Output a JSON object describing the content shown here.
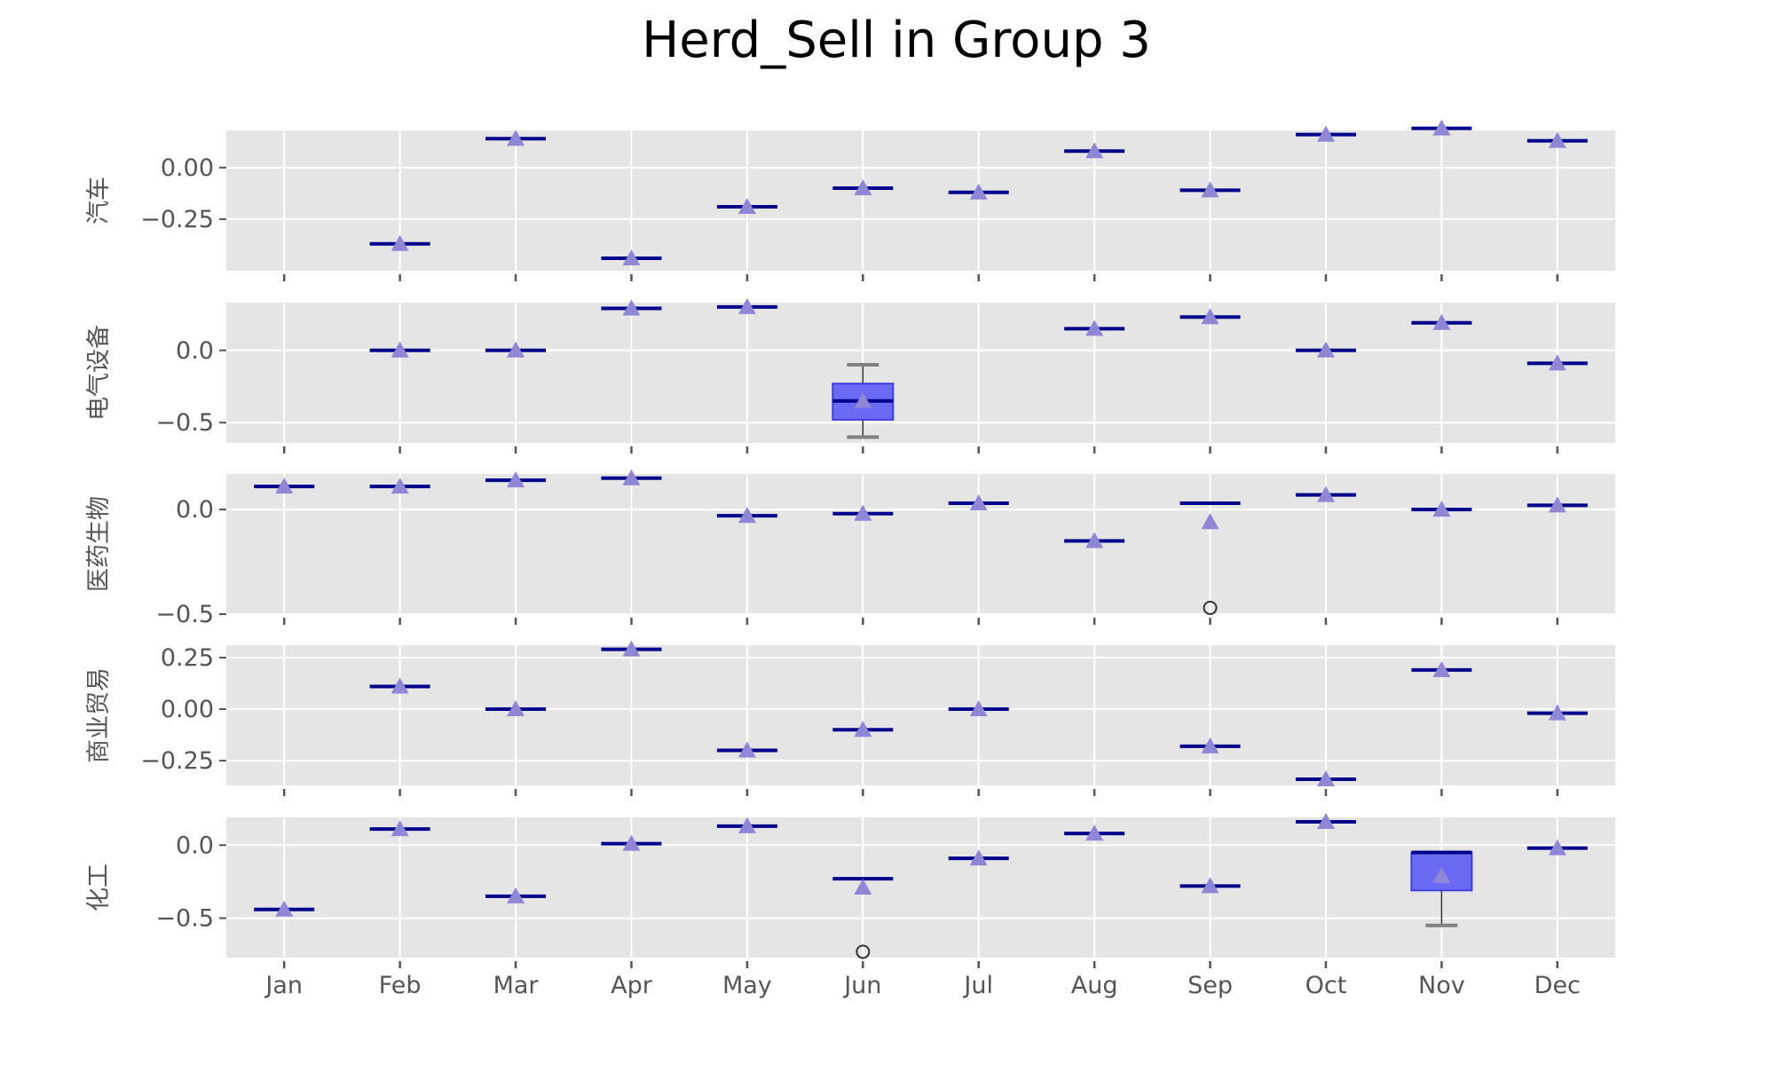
{
  "chart_data": {
    "type": "box",
    "title": "Herd_Sell in Group 3",
    "categories": [
      "Jan",
      "Feb",
      "Mar",
      "Apr",
      "May",
      "Jun",
      "Jul",
      "Aug",
      "Sep",
      "Oct",
      "Nov",
      "Dec"
    ],
    "grid": true,
    "colors": {
      "panel_bg": "#e5e5e5",
      "grid": "#ffffff",
      "median": "#00008b",
      "mean_marker": "#8f86d6",
      "box_fill": "#6a6af5",
      "box_edge": "#3f3fe0",
      "whisker_cap": "#808080",
      "flier": "#333333"
    },
    "panels": [
      {
        "ylabel": "汽车",
        "ylim": [
          -0.5,
          0.18
        ],
        "yticks": [
          0.0,
          -0.25
        ],
        "yticklabels": [
          "0.00",
          "−0.25"
        ],
        "boxes": [
          null,
          {
            "median": -0.37,
            "mean": -0.37
          },
          {
            "median": 0.14,
            "mean": 0.14
          },
          {
            "median": -0.44,
            "mean": -0.44
          },
          {
            "median": -0.19,
            "mean": -0.19
          },
          {
            "median": -0.1,
            "mean": -0.1
          },
          {
            "median": -0.12,
            "mean": -0.12
          },
          {
            "median": 0.08,
            "mean": 0.08
          },
          {
            "median": -0.11,
            "mean": -0.11
          },
          {
            "median": 0.16,
            "mean": 0.16
          },
          {
            "median": 0.19,
            "mean": 0.19
          },
          {
            "median": 0.13,
            "mean": 0.13
          }
        ]
      },
      {
        "ylabel": "电气设备",
        "ylim": [
          -0.64,
          0.33
        ],
        "yticks": [
          0.0,
          -0.5
        ],
        "yticklabels": [
          "0.0",
          "−0.5"
        ],
        "boxes": [
          null,
          {
            "median": 0.0,
            "mean": 0.0
          },
          {
            "median": 0.0,
            "mean": 0.0
          },
          {
            "median": 0.29,
            "mean": 0.29
          },
          {
            "median": 0.3,
            "mean": 0.3
          },
          {
            "median": -0.35,
            "mean": -0.35,
            "q1": -0.48,
            "q3": -0.23,
            "whislo": -0.6,
            "whishi": -0.1
          },
          null,
          {
            "median": 0.15,
            "mean": 0.15
          },
          {
            "median": 0.23,
            "mean": 0.23
          },
          {
            "median": 0.0,
            "mean": 0.0
          },
          {
            "median": 0.19,
            "mean": 0.19
          },
          {
            "median": -0.09,
            "mean": -0.09
          }
        ]
      },
      {
        "ylabel": "医药生物",
        "ylim": [
          -0.5,
          0.17
        ],
        "yticks": [
          0.0,
          -0.5
        ],
        "yticklabels": [
          "0.0",
          "−0.5"
        ],
        "boxes": [
          {
            "median": 0.11,
            "mean": 0.11
          },
          {
            "median": 0.11,
            "mean": 0.11
          },
          {
            "median": 0.14,
            "mean": 0.14
          },
          {
            "median": 0.15,
            "mean": 0.15
          },
          {
            "median": -0.03,
            "mean": -0.03
          },
          {
            "median": -0.02,
            "mean": -0.02
          },
          {
            "median": 0.03,
            "mean": 0.03
          },
          {
            "median": -0.15,
            "mean": -0.15
          },
          {
            "median": 0.03,
            "mean": -0.06,
            "fliers": [
              -0.47
            ]
          },
          {
            "median": 0.07,
            "mean": 0.07
          },
          {
            "median": 0.0,
            "mean": 0.0
          },
          {
            "median": 0.02,
            "mean": 0.02
          }
        ]
      },
      {
        "ylabel": "商业贸易",
        "ylim": [
          -0.37,
          0.31
        ],
        "yticks": [
          0.25,
          0.0,
          -0.25
        ],
        "yticklabels": [
          "0.25",
          "0.00",
          "−0.25"
        ],
        "boxes": [
          null,
          {
            "median": 0.11,
            "mean": 0.11
          },
          {
            "median": 0.0,
            "mean": 0.0
          },
          {
            "median": 0.29,
            "mean": 0.29
          },
          {
            "median": -0.2,
            "mean": -0.2
          },
          {
            "median": -0.1,
            "mean": -0.1
          },
          {
            "median": 0.0,
            "mean": 0.0
          },
          null,
          {
            "median": -0.18,
            "mean": -0.18
          },
          {
            "median": -0.34,
            "mean": -0.34
          },
          {
            "median": 0.19,
            "mean": 0.19
          },
          {
            "median": -0.02,
            "mean": -0.02
          }
        ]
      },
      {
        "ylabel": "化工",
        "ylim": [
          -0.77,
          0.19
        ],
        "yticks": [
          0.0,
          -0.5
        ],
        "yticklabels": [
          "0.0",
          "−0.5"
        ],
        "boxes": [
          {
            "median": -0.44,
            "mean": -0.44
          },
          {
            "median": 0.11,
            "mean": 0.11
          },
          {
            "median": -0.35,
            "mean": -0.35
          },
          {
            "median": 0.01,
            "mean": 0.01
          },
          {
            "median": 0.13,
            "mean": 0.13
          },
          {
            "median": -0.23,
            "mean": -0.29,
            "fliers": [
              -0.73
            ]
          },
          {
            "median": -0.09,
            "mean": -0.09
          },
          {
            "median": 0.08,
            "mean": 0.08
          },
          {
            "median": -0.28,
            "mean": -0.28
          },
          {
            "median": 0.16,
            "mean": 0.16
          },
          {
            "median": -0.05,
            "mean": -0.21,
            "q1": -0.31,
            "q3": -0.05,
            "whislo": -0.55,
            "whishi": -0.05
          },
          {
            "median": -0.02,
            "mean": -0.02
          }
        ]
      }
    ]
  }
}
